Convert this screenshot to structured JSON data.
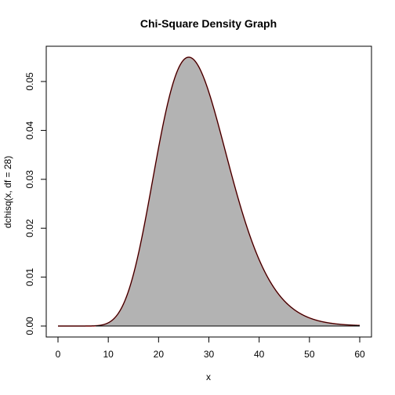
{
  "chart_data": {
    "type": "area",
    "title": "Chi-Square Density Graph",
    "xlabel": "x",
    "ylabel": "dchisq(x, df = 28)",
    "df": 28,
    "xlim": [
      0,
      60
    ],
    "ylim": [
      0,
      0.055
    ],
    "x_ticks": [
      0,
      10,
      20,
      30,
      40,
      50,
      60
    ],
    "x_tick_labels": [
      "0",
      "10",
      "20",
      "30",
      "40",
      "50",
      "60"
    ],
    "y_ticks": [
      0,
      0.01,
      0.02,
      0.03,
      0.04,
      0.05
    ],
    "y_tick_labels": [
      "0.00",
      "0.01",
      "0.02",
      "0.03",
      "0.04",
      "0.05"
    ],
    "shaded_region": [
      7.5,
      60
    ],
    "curve": {
      "x": [
        0,
        5,
        7.5,
        10,
        12,
        14,
        16,
        18,
        20,
        22,
        24,
        26,
        28,
        30,
        32,
        34,
        36,
        38,
        40,
        42,
        44,
        46,
        48,
        50,
        52,
        54,
        56,
        58,
        60
      ],
      "y": [
        0,
        0,
        0.0001,
        0.0007,
        0.0026,
        0.0071,
        0.0154,
        0.0267,
        0.0385,
        0.048,
        0.0534,
        0.0545,
        0.0516,
        0.0462,
        0.0391,
        0.0316,
        0.0245,
        0.0183,
        0.0131,
        0.0091,
        0.0061,
        0.004,
        0.0025,
        0.0016,
        0.001,
        0.0006,
        0.0003,
        0.0002,
        0.0001
      ]
    },
    "colors": {
      "fill": "#b3b3b3",
      "curve_line": "#000000",
      "curve_outline": "#e03030",
      "baseline_outside": "#ff3030"
    },
    "grid": false,
    "legend": "none"
  }
}
